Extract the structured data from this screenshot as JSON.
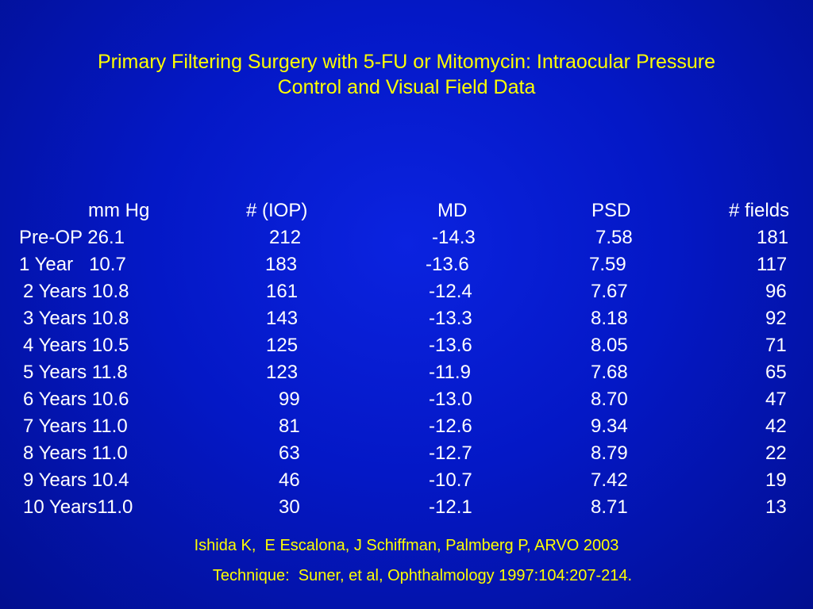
{
  "title": {
    "line1": "Primary Filtering Surgery with 5-FU or Mitomycin: Intraocular Pressure",
    "line2": "Control and Visual Field Data"
  },
  "table": {
    "headers": {
      "mmhg": "mm Hg",
      "iop": "# (IOP)",
      "md": "MD",
      "psd": "PSD",
      "fields": "# fields"
    },
    "rows": [
      {
        "label": "Pre-OP 26.1",
        "iop": "212",
        "md": "-14.3",
        "psd": "7.58",
        "fields": "181"
      },
      {
        "label": "1 Year   10.7",
        "iop": "183",
        "md": "-13.6",
        "psd": "7.59",
        "fields": "117"
      },
      {
        "label": "2 Years 10.8",
        "iop": "161",
        "md": "-12.4",
        "psd": "7.67",
        "fields": "96"
      },
      {
        "label": "3 Years 10.8",
        "iop": "143",
        "md": "-13.3",
        "psd": "8.18",
        "fields": "92"
      },
      {
        "label": "4 Years 10.5",
        "iop": "125",
        "md": "-13.6",
        "psd": "8.05",
        "fields": "71"
      },
      {
        "label": "5 Years 11.8",
        "iop": "123",
        "md": "-11.9",
        "psd": "7.68",
        "fields": "65"
      },
      {
        "label": "6 Years 10.6",
        "iop": "99",
        "md": "-13.0",
        "psd": "8.70",
        "fields": "47"
      },
      {
        "label": "7 Years 11.0",
        "iop": "81",
        "md": "-12.6",
        "psd": "9.34",
        "fields": "42"
      },
      {
        "label": "8 Years 11.0",
        "iop": "63",
        "md": "-12.7",
        "psd": "8.79",
        "fields": "22"
      },
      {
        "label": "9 Years 10.4",
        "iop": "46",
        "md": "-10.7",
        "psd": "7.42",
        "fields": "19"
      },
      {
        "label": "10 Years11.0",
        "iop": "30",
        "md": "-12.1",
        "psd": "8.71",
        "fields": "13"
      }
    ]
  },
  "credits": {
    "authors": "Ishida K,  E Escalona, J Schiffman, Palmberg P, ARVO 2003",
    "technique": "Technique:  Suner, et al, Ophthalmology 1997:104:207-214."
  },
  "colors": {
    "background": "#0418c6",
    "title_text": "#ffff00",
    "table_text": "#ffffff",
    "credit_text": "#ffff00"
  }
}
